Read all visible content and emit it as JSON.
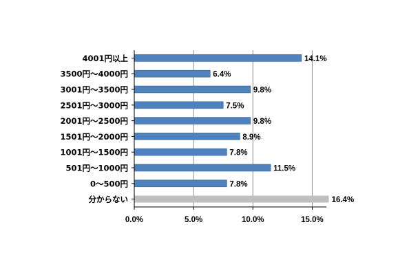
{
  "chart_data": {
    "type": "bar",
    "orientation": "horizontal",
    "categories": [
      "4001円以上",
      "3500円～4000円",
      "3001円～3500円",
      "2501円～3000円",
      "2001円～2500円",
      "1501円～2000円",
      "1001円～1500円",
      "501円～1000円",
      "0～500円",
      "分からない"
    ],
    "values": [
      14.1,
      6.4,
      9.8,
      7.5,
      9.8,
      8.9,
      7.8,
      11.5,
      7.8,
      16.4
    ],
    "value_labels": [
      "14.1%",
      "6.4%",
      "9.8%",
      "7.5%",
      "9.8%",
      "8.9%",
      "7.8%",
      "11.5%",
      "7.8%",
      "16.4%"
    ],
    "xlim": [
      0,
      15
    ],
    "x_ticks": [
      0,
      5,
      10,
      15
    ],
    "x_tick_labels": [
      "0.0%",
      "5.0%",
      "10.0%",
      "15.0%"
    ],
    "grid": "vertical",
    "colors": {
      "bar": "#4F81BD",
      "bar_border": "#3A6496",
      "highlight_bar": "#BFBFBF",
      "grid": "#8C8C8C",
      "axis": "#000000"
    },
    "highlight_category": "分からない"
  }
}
